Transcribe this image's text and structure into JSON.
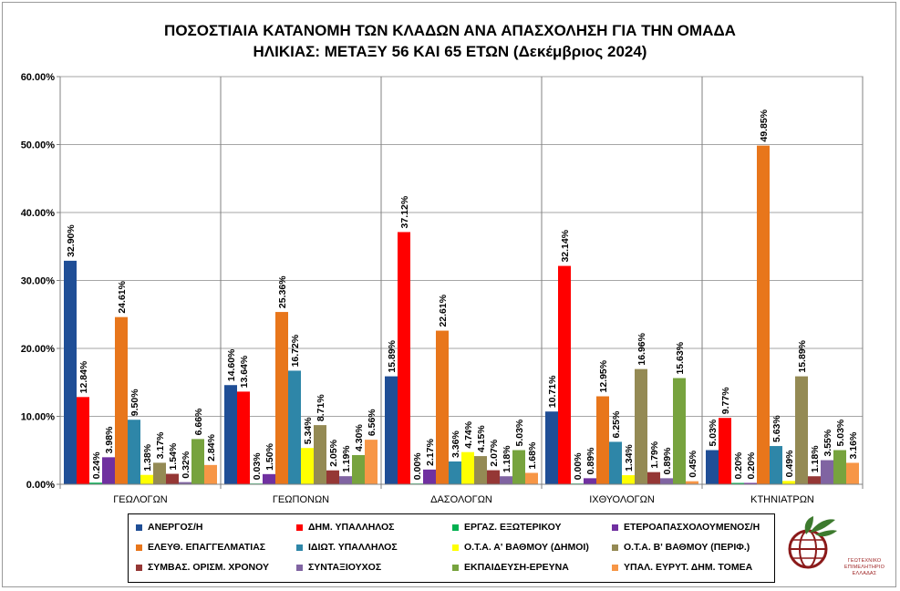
{
  "chart_data": {
    "type": "bar",
    "title": [
      "ΠΟΣΟΣΤΙΑΙΑ ΚΑΤΑΝΟΜΗ ΤΩΝ ΚΛΑΔΩΝ ΑΝΑ ΑΠΑΣΧΟΛΗΣΗ ΓΙΑ ΤΗΝ ΟΜΑΔΑ",
      "ΗΛΙΚΙΑΣ: ΜΕΤΑΞΥ 56 ΚΑΙ 65 ΕΤΩΝ (Δεκέμβριος 2024)"
    ],
    "categories": [
      "ΓΕΩΛΟΓΩΝ",
      "ΓΕΩΠΟΝΩΝ",
      "ΔΑΣΟΛΟΓΩΝ",
      "ΙΧΘΥΟΛΟΓΩΝ",
      "ΚΤΗΝΙΑΤΡΩΝ"
    ],
    "ylim": [
      0,
      60
    ],
    "yticks": [
      "0.00%",
      "10.00%",
      "20.00%",
      "30.00%",
      "40.00%",
      "50.00%",
      "60.00%"
    ],
    "grid": true,
    "legend_position": "bottom",
    "series": [
      {
        "name": "ΑΝΕΡΓΟΣ/Η",
        "color": "#1f4e96",
        "values": [
          32.9,
          14.6,
          15.89,
          10.71,
          5.03
        ],
        "labels": [
          "32.90%",
          "14.60%",
          "15.89%",
          "10.71%",
          "5.03%"
        ]
      },
      {
        "name": "ΔΗΜ. ΥΠΑΛΛΗΛΟΣ",
        "color": "#ff0000",
        "values": [
          12.84,
          13.64,
          37.12,
          32.14,
          9.77
        ],
        "labels": [
          "12.84%",
          "13.64%",
          "37.12%",
          "32.14%",
          "9.77%"
        ]
      },
      {
        "name": "ΕΡΓΑΖ. ΕΞΩΤΕΡΙΚΟΥ",
        "color": "#00b050",
        "values": [
          0.24,
          0.03,
          0.0,
          0.0,
          0.2
        ],
        "labels": [
          "0.24%",
          "0.03%",
          "0.00%",
          "0.00%",
          "0.20%"
        ]
      },
      {
        "name": "ΕΤΕΡΟΑΠΑΣΧΟΛΟΥΜΕΝΟΣ/Η",
        "color": "#7030a0",
        "values": [
          3.98,
          1.5,
          2.17,
          0.89,
          0.2
        ],
        "labels": [
          "3.98%",
          "1.50%",
          "2.17%",
          "0.89%",
          "0.20%"
        ]
      },
      {
        "name": "ΕΛΕΥΘ. ΕΠΑΓΓΕΛΜΑΤΙΑΣ",
        "color": "#e8761b",
        "values": [
          24.61,
          25.36,
          22.61,
          12.95,
          49.85
        ],
        "labels": [
          "24.61%",
          "25.36%",
          "22.61%",
          "12.95%",
          "49.85%"
        ]
      },
      {
        "name": "ΙΔΙΩΤ. ΥΠΑΛΛΗΛΟΣ",
        "color": "#2e86a8",
        "values": [
          9.5,
          16.72,
          3.36,
          6.25,
          5.63
        ],
        "labels": [
          "9.50%",
          "16.72%",
          "3.36%",
          "6.25%",
          "5.63%"
        ]
      },
      {
        "name": "Ο.Τ.Α. Α' ΒΑΘΜΟΥ (ΔΗΜΟΙ)",
        "color": "#ffff00",
        "values": [
          1.38,
          5.34,
          4.74,
          1.34,
          0.49
        ],
        "labels": [
          "1.38%",
          "5.34%",
          "4.74%",
          "1.34%",
          "0.49%"
        ]
      },
      {
        "name": "Ο.Τ.Α. Β' ΒΑΘΜΟΥ (ΠΕΡΙΦ.)",
        "color": "#948a54",
        "values": [
          3.17,
          8.71,
          4.15,
          16.96,
          15.89
        ],
        "labels": [
          "3.17%",
          "8.71%",
          "4.15%",
          "16.96%",
          "15.89%"
        ]
      },
      {
        "name": "ΣΥΜΒΑΣ. ΟΡΙΣΜ. ΧΡΟΝΟΥ",
        "color": "#953735",
        "values": [
          1.54,
          2.05,
          2.07,
          1.79,
          1.18
        ],
        "labels": [
          "1.54%",
          "2.05%",
          "2.07%",
          "1.79%",
          "1.18%"
        ]
      },
      {
        "name": "ΣΥΝΤΑΞΙΟΥΧΟΣ",
        "color": "#8064a2",
        "values": [
          0.32,
          1.19,
          1.18,
          0.89,
          3.55
        ],
        "labels": [
          "0.32%",
          "1.19%",
          "1.18%",
          "0.89%",
          "3.55%"
        ]
      },
      {
        "name": "ΕΚΠΑΙΔΕΥΣΗ-ΕΡΕΥΝΑ",
        "color": "#77a33e",
        "values": [
          6.66,
          4.3,
          5.03,
          15.63,
          5.03
        ],
        "labels": [
          "6.66%",
          "4.30%",
          "5.03%",
          "15.63%",
          "5.03%"
        ]
      },
      {
        "name": "ΥΠΑΛ. ΕΥΡΥΤ. ΔΗΜ. ΤΟΜΕΑ",
        "color": "#f79646",
        "values": [
          2.84,
          6.56,
          1.68,
          0.45,
          3.16
        ],
        "labels": [
          "2.84%",
          "6.56%",
          "1.68%",
          "0.45%",
          "3.16%"
        ]
      }
    ]
  },
  "logo": {
    "lines": [
      "ΓΕΩΤΕΧΝΙΚΟ",
      "ΕΠΙΜΕΛΗΤΗΡΙΟ",
      "ΕΛΛΑΔΑΣ"
    ],
    "globe_color": "#8b1a1a",
    "leaf_color": "#3d7a2e"
  }
}
